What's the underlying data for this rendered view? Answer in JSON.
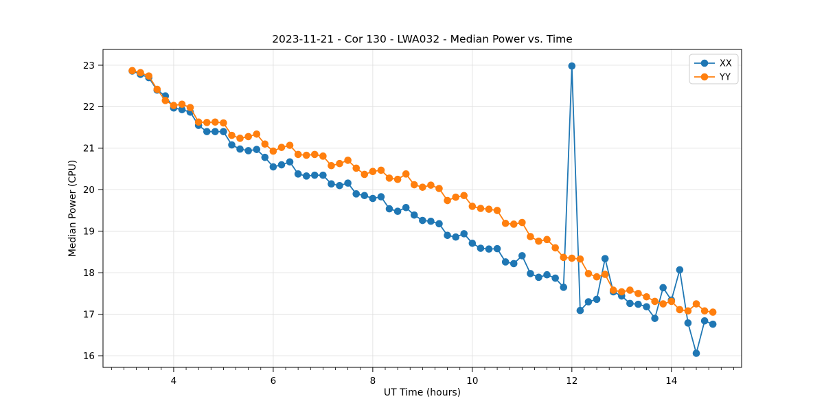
{
  "figure": {
    "background": "#ffffff"
  },
  "chart_data": {
    "type": "line",
    "title": "2023-11-21 - Cor 130 - LWA032 - Median Power vs. Time",
    "xlabel": "UT Time (hours)",
    "ylabel": "Median Power (CPU)",
    "xlim": [
      2.58,
      15.41
    ],
    "ylim": [
      15.72,
      23.38
    ],
    "xticks": [
      4,
      6,
      8,
      10,
      12,
      14
    ],
    "yticks": [
      16,
      17,
      18,
      19,
      20,
      21,
      22,
      23
    ],
    "x_minor_step": 0.25,
    "grid": true,
    "grid_color": "#e0e0e0",
    "spine_color": "#000000",
    "legend_position": "upper right",
    "marker": "circle",
    "x": [
      3.167,
      3.333,
      3.5,
      3.667,
      3.833,
      4,
      4.167,
      4.333,
      4.5,
      4.667,
      4.833,
      5,
      5.167,
      5.333,
      5.5,
      5.667,
      5.833,
      6,
      6.167,
      6.333,
      6.5,
      6.667,
      6.833,
      7,
      7.167,
      7.333,
      7.5,
      7.667,
      7.833,
      8,
      8.167,
      8.333,
      8.5,
      8.667,
      8.833,
      9,
      9.167,
      9.333,
      9.5,
      9.667,
      9.833,
      10,
      10.167,
      10.333,
      10.5,
      10.667,
      10.833,
      11,
      11.167,
      11.333,
      11.5,
      11.667,
      11.833,
      12,
      12.167,
      12.333,
      12.5,
      12.667,
      12.833,
      13,
      13.167,
      13.333,
      13.5,
      13.667,
      13.833,
      14,
      14.167,
      14.333,
      14.5,
      14.667,
      14.833
    ],
    "series": [
      {
        "name": "XX",
        "color": "#1f77b4",
        "values": [
          22.86,
          22.78,
          22.7,
          22.4,
          22.26,
          21.97,
          21.93,
          21.87,
          21.55,
          21.4,
          21.4,
          21.4,
          21.08,
          20.98,
          20.94,
          20.97,
          20.78,
          20.55,
          20.6,
          20.67,
          20.38,
          20.33,
          20.35,
          20.35,
          20.14,
          20.1,
          20.16,
          19.9,
          19.86,
          19.79,
          19.83,
          19.54,
          19.48,
          19.57,
          19.39,
          19.26,
          19.24,
          19.18,
          18.9,
          18.86,
          18.94,
          18.71,
          18.59,
          18.57,
          18.58,
          18.26,
          18.22,
          18.41,
          17.98,
          17.89,
          17.95,
          17.87,
          17.65,
          22.98,
          17.09,
          17.3,
          17.36,
          18.34,
          17.54,
          17.44,
          17.26,
          17.24,
          17.18,
          16.9,
          17.64,
          17.34,
          18.07,
          16.79,
          16.06,
          16.84,
          16.76
        ]
      },
      {
        "name": "YY",
        "color": "#ff7f0e",
        "values": [
          22.87,
          22.82,
          22.74,
          22.42,
          22.15,
          22.03,
          22.06,
          21.98,
          21.63,
          21.62,
          21.63,
          21.61,
          21.31,
          21.24,
          21.28,
          21.34,
          21.1,
          20.93,
          21.02,
          21.07,
          20.85,
          20.83,
          20.85,
          20.81,
          20.58,
          20.63,
          20.71,
          20.52,
          20.37,
          20.44,
          20.47,
          20.28,
          20.25,
          20.38,
          20.12,
          20.06,
          20.11,
          20.03,
          19.74,
          19.82,
          19.86,
          19.6,
          19.55,
          19.53,
          19.5,
          19.19,
          19.17,
          19.21,
          18.87,
          18.76,
          18.8,
          18.6,
          18.37,
          18.35,
          18.33,
          17.98,
          17.9,
          17.96,
          17.58,
          17.54,
          17.58,
          17.5,
          17.42,
          17.31,
          17.25,
          17.31,
          17.11,
          17.08,
          17.25,
          17.08,
          17.05
        ]
      }
    ]
  }
}
